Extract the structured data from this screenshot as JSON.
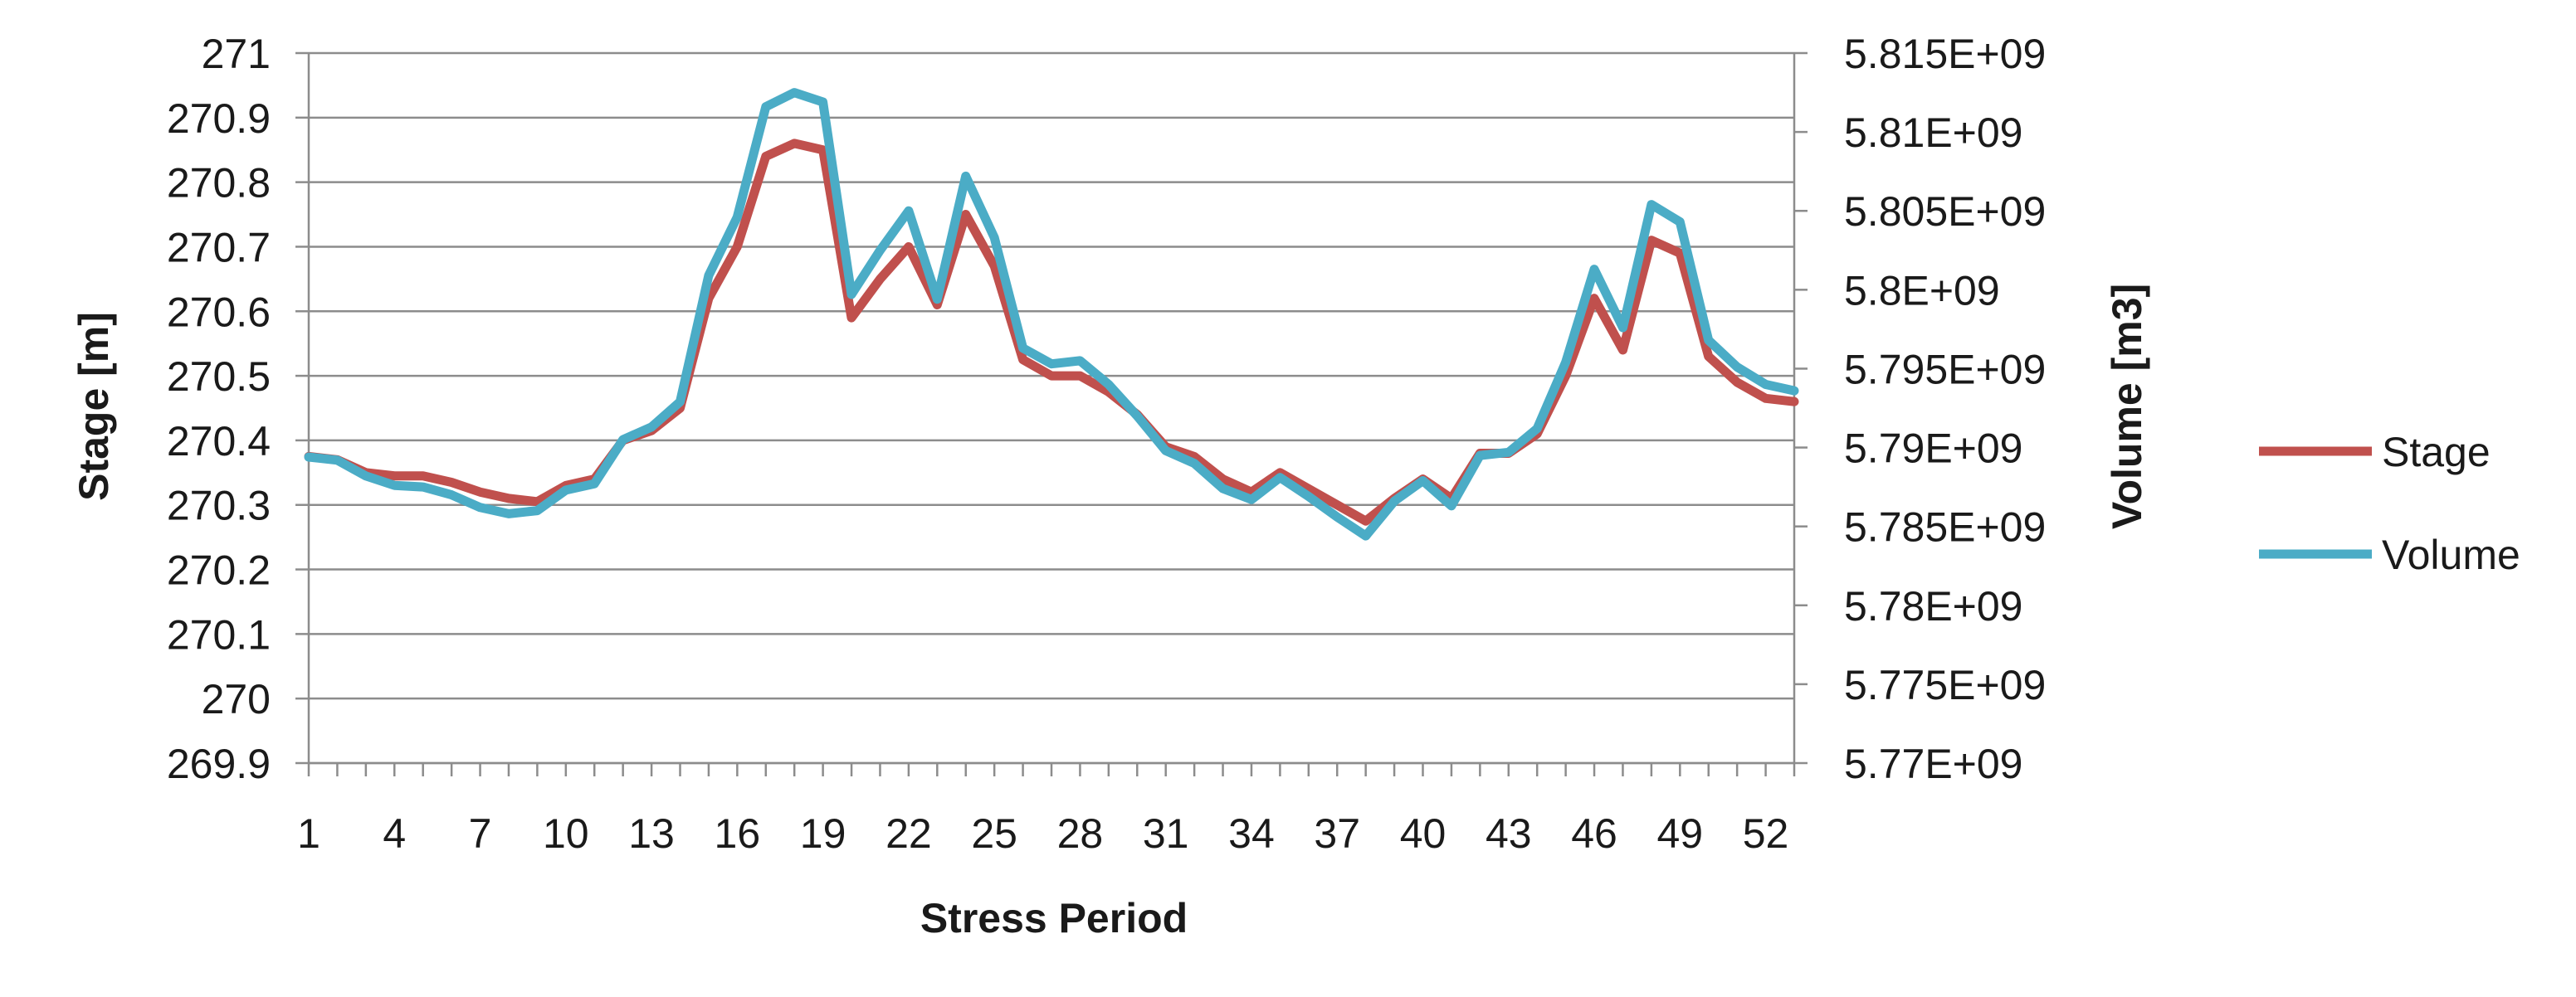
{
  "chart_data": {
    "type": "line",
    "title": "",
    "xlabel": "Stress Period",
    "ylabel_left": "Stage [m]",
    "ylabel_right": "Volume [m3]",
    "x": [
      1,
      2,
      3,
      4,
      5,
      6,
      7,
      8,
      9,
      10,
      11,
      12,
      13,
      14,
      15,
      16,
      17,
      18,
      19,
      20,
      21,
      22,
      23,
      24,
      25,
      26,
      27,
      28,
      29,
      30,
      31,
      32,
      33,
      34,
      35,
      36,
      37,
      38,
      39,
      40,
      41,
      42,
      43,
      44,
      45,
      46,
      47,
      48,
      49,
      50,
      51,
      52,
      53
    ],
    "x_ticks": [
      "1",
      "4",
      "7",
      "10",
      "13",
      "16",
      "19",
      "22",
      "25",
      "28",
      "31",
      "34",
      "37",
      "40",
      "43",
      "46",
      "49",
      "52"
    ],
    "xlim": [
      1,
      53
    ],
    "ylim_left": [
      269.9,
      271
    ],
    "y_ticks_left": [
      "269.9",
      "270",
      "270.1",
      "270.2",
      "270.3",
      "270.4",
      "270.5",
      "270.6",
      "270.7",
      "270.8",
      "270.9",
      "271"
    ],
    "ylim_right": [
      5770000000,
      5815000000
    ],
    "y_ticks_right": [
      "5.77E+09",
      "5.775E+09",
      "5.78E+09",
      "5.785E+09",
      "5.79E+09",
      "5.795E+09",
      "5.8E+09",
      "5.805E+09",
      "5.81E+09",
      "5.815E+09"
    ],
    "grid": true,
    "legend_position": "right",
    "series": [
      {
        "name": "Stage",
        "axis": "left",
        "color": "#C0504D",
        "values": [
          270.375,
          270.37,
          270.35,
          270.345,
          270.345,
          270.335,
          270.32,
          270.31,
          270.305,
          270.33,
          270.34,
          270.4,
          270.415,
          270.45,
          270.62,
          270.7,
          270.84,
          270.86,
          270.85,
          270.59,
          270.65,
          270.7,
          270.61,
          270.75,
          270.67,
          270.525,
          270.5,
          270.5,
          270.475,
          270.44,
          270.39,
          270.375,
          270.34,
          270.32,
          270.35,
          270.325,
          270.3,
          270.275,
          270.31,
          270.34,
          270.31,
          270.38,
          270.38,
          270.41,
          270.5,
          270.62,
          270.54,
          270.71,
          270.69,
          270.53,
          270.49,
          270.465,
          270.46
        ]
      },
      {
        "name": "Volume",
        "axis": "right",
        "color": "#4BACC6",
        "values": [
          5789400000,
          5789200000,
          5788200000,
          5787600000,
          5787500000,
          5787000000,
          5786200000,
          5785800000,
          5786000000,
          5787300000,
          5787700000,
          5790500000,
          5791300000,
          5792900000,
          5800900000,
          5804600000,
          5811600000,
          5812500000,
          5811900000,
          5799700000,
          5802500000,
          5805000000,
          5799400000,
          5807200000,
          5803300000,
          5796300000,
          5795300000,
          5795500000,
          5794000000,
          5792000000,
          5789800000,
          5789000000,
          5787400000,
          5786700000,
          5788100000,
          5786900000,
          5785600000,
          5784400000,
          5786600000,
          5787900000,
          5786300000,
          5789500000,
          5789700000,
          5791200000,
          5795400000,
          5801300000,
          5797600000,
          5805400000,
          5804300000,
          5796800000,
          5795100000,
          5794000000,
          5793600000
        ]
      }
    ]
  }
}
